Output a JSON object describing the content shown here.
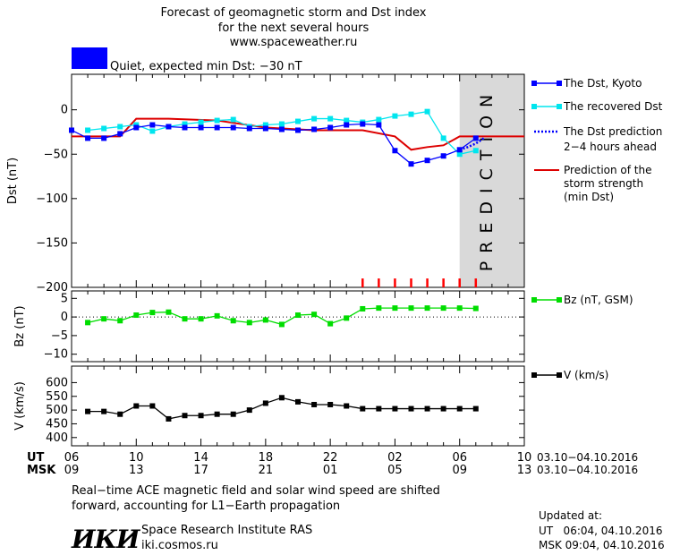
{
  "header": {
    "title_line1": "Forecast of geomagnetic storm and Dst index",
    "title_line2": "for the next several hours",
    "site": "www.spaceweather.ru",
    "status": "Quiet, expected min Dst: −30 nT",
    "status_color": "#0000ff"
  },
  "legend": {
    "dst_kyoto": "The Dst, Kyoto",
    "recovered": "The recovered Dst",
    "prediction_line1": "The Dst prediction",
    "prediction_line2": "2−4 hours ahead",
    "strength_line1": "Prediction of the",
    "strength_line2": "storm strength",
    "strength_line3": "(min Dst)",
    "bz": "Bz (nT, GSM)",
    "v": "V (km/s)"
  },
  "prediction_label": "PREDICTION",
  "time_axis": {
    "ut_label": "UT",
    "msk_label": "MSK",
    "ut_ticks": [
      "06",
      "10",
      "14",
      "18",
      "22",
      "02",
      "06",
      "10"
    ],
    "msk_ticks": [
      "09",
      "13",
      "17",
      "21",
      "01",
      "05",
      "09",
      "13"
    ],
    "ut_range": "03.10−04.10.2016",
    "msk_range": "03.10−04.10.2016"
  },
  "footer": {
    "note_line1": "Real−time ACE magnetic field and solar wind speed are shifted",
    "note_line2": "forward, accounting for L1−Earth propagation",
    "logo": "ИКИ",
    "institute": "Space Research Institute RAS",
    "institute_url": "iki.cosmos.ru",
    "updated_label": "Updated at:",
    "updated_ut": "UT   06:04, 04.10.2016",
    "updated_msk": "MSK 09:04, 04.10.2016"
  },
  "colors": {
    "dst": "#0000ff",
    "recovered": "#00e5ee",
    "prediction": "#0000ff",
    "strength": "#dd0000",
    "bz": "#00dd00",
    "v": "#000000",
    "ticks_red": "#ff0000",
    "prediction_band": "#d9d9d9"
  },
  "chart_data": [
    {
      "type": "line",
      "panel": "dst",
      "ylabel": "Dst (nT)",
      "xlabel": "UT / MSK",
      "x_hours_range": [
        6,
        34
      ],
      "ylim": [
        -200,
        40
      ],
      "yticks": [
        0,
        -50,
        -100,
        -150,
        -200
      ],
      "prediction_region_hours": [
        30,
        34
      ],
      "series": [
        {
          "name": "The Dst, Kyoto",
          "x": [
            6,
            7,
            8,
            9,
            10,
            11,
            12,
            13,
            14,
            15,
            16,
            17,
            18,
            19,
            20,
            21,
            22,
            23,
            24,
            25,
            26,
            27,
            28,
            29,
            30,
            31
          ],
          "y": [
            -23,
            -32,
            -32,
            -27,
            -20,
            -17,
            -19,
            -20,
            -20,
            -20,
            -20,
            -21,
            -21,
            -22,
            -23,
            -22,
            -20,
            -17,
            -16,
            -17,
            -46,
            -61,
            -57,
            -52,
            -45,
            -32
          ]
        },
        {
          "name": "The recovered Dst",
          "x": [
            7,
            8,
            9,
            10,
            11,
            12,
            13,
            14,
            15,
            16,
            17,
            18,
            19,
            20,
            21,
            22,
            23,
            24,
            25,
            26,
            27,
            28,
            29,
            30,
            31
          ],
          "y": [
            -23,
            -21,
            -19,
            -17,
            -24,
            -19,
            -16,
            -14,
            -12,
            -11,
            -19,
            -17,
            -16,
            -13,
            -10,
            -10,
            -12,
            -14,
            -11,
            -7,
            -5,
            -2,
            -32,
            -50,
            -46
          ]
        },
        {
          "name": "The Dst prediction 2−4 hours ahead",
          "x": [
            30,
            30.5,
            31,
            31.5
          ],
          "y": [
            -45,
            -42,
            -38,
            -32
          ]
        },
        {
          "name": "Prediction of the storm strength (min Dst)",
          "x": [
            6,
            9,
            10,
            12,
            15,
            18,
            21,
            24,
            26,
            27,
            28,
            29,
            30,
            32,
            34
          ],
          "y": [
            -30,
            -30,
            -10,
            -10,
            -12,
            -20,
            -23,
            -23,
            -30,
            -45,
            -42,
            -40,
            -30,
            -30,
            -30
          ]
        }
      ],
      "annotations": {
        "red_ticks_x_hours": [
          24,
          25,
          26,
          27,
          28,
          29,
          30,
          31
        ]
      }
    },
    {
      "type": "line",
      "panel": "bz",
      "ylabel": "Bz (nT)",
      "ylim": [
        -12,
        7
      ],
      "yticks": [
        5,
        0,
        -5,
        -10
      ],
      "series": [
        {
          "name": "Bz (nT, GSM)",
          "x": [
            7,
            8,
            9,
            10,
            11,
            12,
            13,
            14,
            15,
            16,
            17,
            18,
            19,
            20,
            21,
            22,
            23,
            24,
            25,
            26,
            27,
            28,
            29,
            30,
            31
          ],
          "y": [
            -1.5,
            -0.5,
            -1,
            0.5,
            1.2,
            1.3,
            -0.5,
            -0.5,
            0.3,
            -1,
            -1.5,
            -0.8,
            -2,
            0.5,
            0.7,
            -1.8,
            -0.3,
            2.2,
            2.4,
            2.4,
            2.4,
            2.4,
            2.4,
            2.4,
            2.3
          ]
        }
      ]
    },
    {
      "type": "line",
      "panel": "v",
      "ylabel": "V (km/s)",
      "ylim": [
        370,
        660
      ],
      "yticks": [
        600,
        550,
        500,
        450,
        400
      ],
      "series": [
        {
          "name": "V (km/s)",
          "x": [
            7,
            8,
            9,
            10,
            11,
            12,
            13,
            14,
            15,
            16,
            17,
            18,
            19,
            20,
            21,
            22,
            23,
            24,
            25,
            26,
            27,
            28,
            29,
            30,
            31
          ],
          "y": [
            495,
            495,
            485,
            515,
            515,
            468,
            480,
            480,
            485,
            485,
            500,
            525,
            545,
            530,
            520,
            520,
            515,
            505,
            505,
            505,
            505,
            505,
            505,
            505,
            505
          ]
        }
      ]
    }
  ]
}
